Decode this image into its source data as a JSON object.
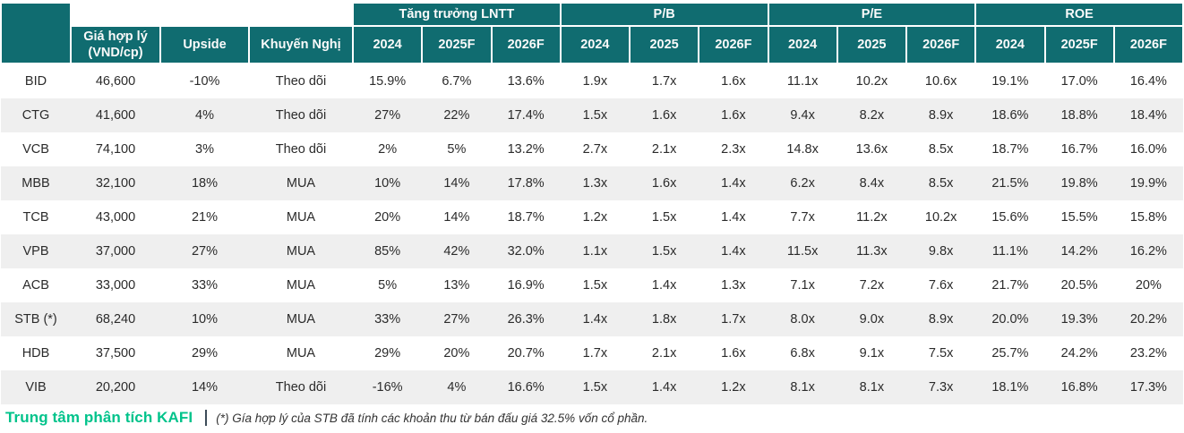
{
  "colors": {
    "header_teal": "#106c70",
    "stripe_gray": "#efefef",
    "brand_green": "#00c38b",
    "separator_dark": "#3d4c59",
    "body_text": "#2b2b2b"
  },
  "table": {
    "fixed_headers": [
      "Giá hợp lý (VND/cp)",
      "Upside",
      "Khuyến Nghị"
    ],
    "groups": [
      {
        "key": "lntt",
        "label": "Tăng trưởng LNTT",
        "years": [
          "2024",
          "2025F",
          "2026F"
        ]
      },
      {
        "key": "pb",
        "label": "P/B",
        "years": [
          "2024",
          "2025",
          "2026F"
        ]
      },
      {
        "key": "pe",
        "label": "P/E",
        "years": [
          "2024",
          "2025",
          "2026F"
        ]
      },
      {
        "key": "roe",
        "label": "ROE",
        "years": [
          "2024",
          "2025F",
          "2026F"
        ]
      }
    ],
    "rows": [
      {
        "ticker": "BID",
        "fair_value": "46,600",
        "upside": "-10%",
        "recommendation": "Theo dõi",
        "values": [
          "15.9%",
          "6.7%",
          "13.6%",
          "1.9x",
          "1.7x",
          "1.6x",
          "11.1x",
          "10.2x",
          "10.6x",
          "19.1%",
          "17.0%",
          "16.4%"
        ]
      },
      {
        "ticker": "CTG",
        "fair_value": "41,600",
        "upside": "4%",
        "recommendation": "Theo dõi",
        "values": [
          "27%",
          "22%",
          "17.4%",
          "1.5x",
          "1.6x",
          "1.6x",
          "9.4x",
          "8.2x",
          "8.9x",
          "18.6%",
          "18.8%",
          "18.4%"
        ]
      },
      {
        "ticker": "VCB",
        "fair_value": "74,100",
        "upside": "3%",
        "recommendation": "Theo dõi",
        "values": [
          "2%",
          "5%",
          "13.2%",
          "2.7x",
          "2.1x",
          "2.3x",
          "14.8x",
          "13.6x",
          "8.5x",
          "18.7%",
          "16.7%",
          "16.0%"
        ]
      },
      {
        "ticker": "MBB",
        "fair_value": "32,100",
        "upside": "18%",
        "recommendation": "MUA",
        "values": [
          "10%",
          "14%",
          "17.8%",
          "1.3x",
          "1.6x",
          "1.4x",
          "6.2x",
          "8.4x",
          "8.5x",
          "21.5%",
          "19.8%",
          "19.9%"
        ]
      },
      {
        "ticker": "TCB",
        "fair_value": "43,000",
        "upside": "21%",
        "recommendation": "MUA",
        "values": [
          "20%",
          "14%",
          "18.7%",
          "1.2x",
          "1.5x",
          "1.4x",
          "7.7x",
          "11.2x",
          "10.2x",
          "15.6%",
          "15.5%",
          "15.8%"
        ]
      },
      {
        "ticker": "VPB",
        "fair_value": "37,000",
        "upside": "27%",
        "recommendation": "MUA",
        "values": [
          "85%",
          "42%",
          "32.0%",
          "1.1x",
          "1.5x",
          "1.4x",
          "11.5x",
          "11.3x",
          "9.8x",
          "11.1%",
          "14.2%",
          "16.2%"
        ]
      },
      {
        "ticker": "ACB",
        "fair_value": "33,000",
        "upside": "33%",
        "recommendation": "MUA",
        "values": [
          "5%",
          "13%",
          "16.9%",
          "1.5x",
          "1.4x",
          "1.3x",
          "7.1x",
          "7.2x",
          "7.6x",
          "21.7%",
          "20.5%",
          "20%"
        ]
      },
      {
        "ticker": "STB (*)",
        "fair_value": "68,240",
        "upside": "10%",
        "recommendation": "MUA",
        "values": [
          "33%",
          "27%",
          "26.3%",
          "1.4x",
          "1.8x",
          "1.7x",
          "8.0x",
          "9.0x",
          "8.9x",
          "20.0%",
          "19.3%",
          "20.2%"
        ]
      },
      {
        "ticker": "HDB",
        "fair_value": "37,500",
        "upside": "29%",
        "recommendation": "MUA",
        "values": [
          "29%",
          "20%",
          "20.7%",
          "1.7x",
          "2.1x",
          "1.6x",
          "6.8x",
          "9.1x",
          "7.5x",
          "25.7%",
          "24.2%",
          "23.2%"
        ]
      },
      {
        "ticker": "VIB",
        "fair_value": "20,200",
        "upside": "14%",
        "recommendation": "Theo dõi",
        "values": [
          "-16%",
          "4%",
          "16.6%",
          "1.5x",
          "1.4x",
          "1.2x",
          "8.1x",
          "8.1x",
          "7.3x",
          "18.1%",
          "16.8%",
          "17.3%"
        ]
      }
    ]
  },
  "footer": {
    "source": "Trung tâm phân tích KAFI",
    "note": "(*) Gía hợp lý của STB đã tính các khoản thu từ bán đấu giá 32.5% vốn cổ phần."
  }
}
